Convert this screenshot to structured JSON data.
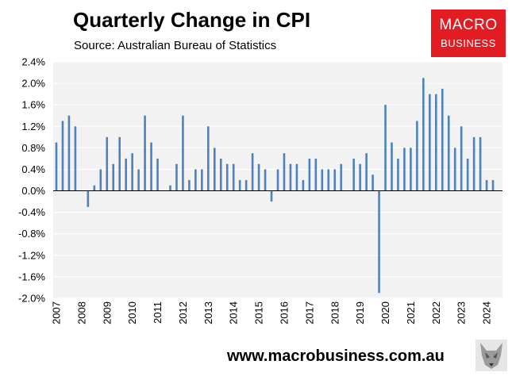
{
  "header": {
    "title": "Quarterly Change in CPI",
    "subtitle": "Source: Australian Bureau of Statistics"
  },
  "logo": {
    "line1": "MACRO",
    "line2": "BUSINESS"
  },
  "footer": {
    "url": "www.macrobusiness.com.au"
  },
  "colors": {
    "bar": "#4f81bd",
    "plot_bg": "#f2f2f2",
    "grid": "#ffffff",
    "logo_bg": "#e31b23"
  },
  "icons": {
    "mascot": "wolf-icon"
  },
  "chart_data": {
    "type": "bar",
    "title": "Quarterly Change in CPI",
    "subtitle": "Source: Australian Bureau of Statistics",
    "xlabel": "",
    "ylabel": "",
    "ylim": [
      -2.0,
      2.4
    ],
    "grid": true,
    "legend": "none",
    "y_ticks": [
      "2.4%",
      "2.0%",
      "1.6%",
      "1.2%",
      "0.8%",
      "0.4%",
      "0.0%",
      "-0.4%",
      "-0.8%",
      "-1.2%",
      "-1.6%",
      "-2.0%"
    ],
    "y_tick_values": [
      2.4,
      2.0,
      1.6,
      1.2,
      0.8,
      0.4,
      0.0,
      -0.4,
      -0.8,
      -1.2,
      -1.6,
      -2.0
    ],
    "x_tick_labels": [
      "2007",
      "2008",
      "2009",
      "2010",
      "2011",
      "2012",
      "2013",
      "2014",
      "2015",
      "2016",
      "2017",
      "2018",
      "2019",
      "2020",
      "2021",
      "2022",
      "2023",
      "2024"
    ],
    "categories": [
      "Mar-2007",
      "Jun-2007",
      "Sep-2007",
      "Dec-2007",
      "Mar-2008",
      "Jun-2008",
      "Sep-2008",
      "Dec-2008",
      "Mar-2009",
      "Jun-2009",
      "Sep-2009",
      "Dec-2009",
      "Mar-2010",
      "Jun-2010",
      "Sep-2010",
      "Dec-2010",
      "Mar-2011",
      "Jun-2011",
      "Sep-2011",
      "Dec-2011",
      "Mar-2012",
      "Jun-2012",
      "Sep-2012",
      "Dec-2012",
      "Mar-2013",
      "Jun-2013",
      "Sep-2013",
      "Dec-2013",
      "Mar-2014",
      "Jun-2014",
      "Sep-2014",
      "Dec-2014",
      "Mar-2015",
      "Jun-2015",
      "Sep-2015",
      "Dec-2015",
      "Mar-2016",
      "Jun-2016",
      "Sep-2016",
      "Dec-2016",
      "Mar-2017",
      "Jun-2017",
      "Sep-2017",
      "Dec-2017",
      "Mar-2018",
      "Jun-2018",
      "Sep-2018",
      "Dec-2018",
      "Mar-2019",
      "Jun-2019",
      "Sep-2019",
      "Dec-2019",
      "Mar-2020",
      "Jun-2020",
      "Sep-2020",
      "Dec-2020",
      "Mar-2021",
      "Jun-2021",
      "Sep-2021",
      "Dec-2021",
      "Mar-2022",
      "Jun-2022",
      "Sep-2022",
      "Dec-2022",
      "Mar-2023",
      "Jun-2023",
      "Sep-2023",
      "Dec-2023",
      "Mar-2024",
      "Jun-2024",
      "Sep-2024"
    ],
    "values": [
      0.9,
      1.3,
      1.4,
      1.2,
      0.0,
      -0.3,
      0.1,
      0.4,
      1.0,
      0.5,
      1.0,
      0.6,
      0.7,
      0.4,
      1.4,
      0.9,
      0.6,
      0.0,
      0.1,
      0.5,
      1.4,
      0.2,
      0.4,
      0.4,
      1.2,
      0.8,
      0.6,
      0.5,
      0.5,
      0.2,
      0.2,
      0.7,
      0.5,
      0.4,
      -0.2,
      0.4,
      0.7,
      0.5,
      0.5,
      0.2,
      0.6,
      0.6,
      0.4,
      0.4,
      0.4,
      0.5,
      0.0,
      0.6,
      0.5,
      0.7,
      0.3,
      -1.9,
      1.6,
      0.9,
      0.6,
      0.8,
      0.8,
      1.3,
      2.1,
      1.8,
      1.8,
      1.9,
      1.4,
      0.8,
      1.2,
      0.6,
      1.0,
      1.0,
      0.2,
      0.2,
      0.0
    ]
  }
}
